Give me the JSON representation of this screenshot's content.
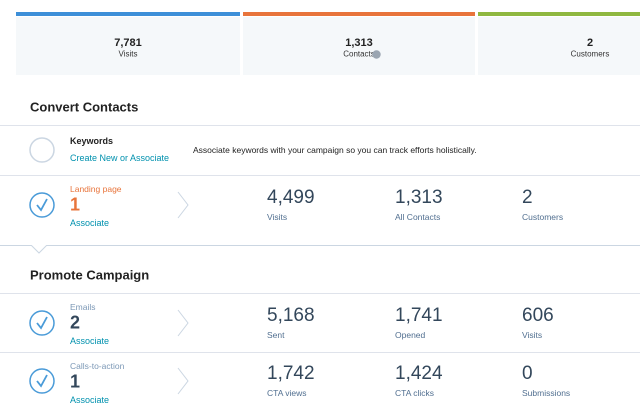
{
  "summary": [
    {
      "value": "7,781",
      "label": "Visits"
    },
    {
      "value": "1,313",
      "label": "Contacts"
    },
    {
      "value": "2",
      "label": "Customers"
    }
  ],
  "convert_contacts": {
    "title": "Convert Contacts",
    "keywords": {
      "title": "Keywords",
      "link": "Create New or Associate",
      "description": "Associate keywords with your campaign so you can track efforts holistically."
    },
    "rows": [
      {
        "label": "Landing page",
        "count": "1",
        "link": "Associate",
        "stats": [
          {
            "value": "4,499",
            "label": "Visits"
          },
          {
            "value": "1,313",
            "label": "All Contacts"
          },
          {
            "value": "2",
            "label": "Customers"
          }
        ]
      }
    ]
  },
  "promote_campaign": {
    "title": "Promote Campaign",
    "rows": [
      {
        "label": "Emails",
        "count": "2",
        "link": "Associate",
        "stats": [
          {
            "value": "5,168",
            "label": "Sent"
          },
          {
            "value": "1,741",
            "label": "Opened"
          },
          {
            "value": "606",
            "label": "Visits"
          }
        ]
      },
      {
        "label": "Calls-to-action",
        "count": "1",
        "link": "Associate",
        "stats": [
          {
            "value": "1,742",
            "label": "CTA views"
          },
          {
            "value": "1,424",
            "label": "CTA clicks"
          },
          {
            "value": "0",
            "label": "Submissions"
          }
        ]
      }
    ]
  }
}
